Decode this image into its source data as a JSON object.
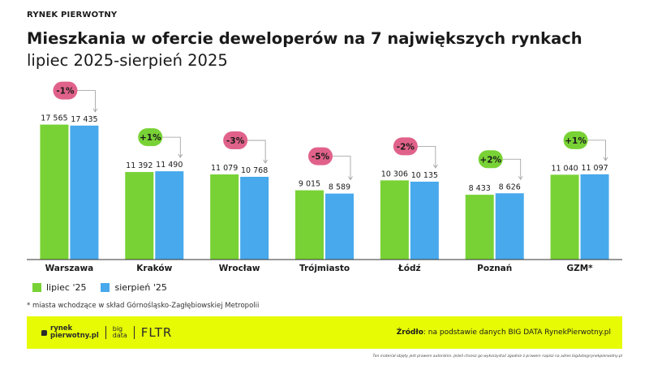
{
  "header": {
    "kicker": "RYNEK PIERWOTNY",
    "title_line1": "Mieszkania w ofercie deweloperów na 7 największych rynkach",
    "title_line2": "lipiec 2025-sierpień 2025"
  },
  "chart_data": {
    "type": "bar",
    "categories": [
      "Warszawa",
      "Kraków",
      "Wrocław",
      "Trójmiasto",
      "Łódź",
      "Poznań",
      "GZM*"
    ],
    "series": [
      {
        "name": "lipiec '25",
        "color": "#78d235",
        "values": [
          17565,
          11392,
          11079,
          9015,
          10306,
          8433,
          11040
        ],
        "labels": [
          "17 565",
          "11 392",
          "11 079",
          "9 015",
          "10 306",
          "8 433",
          "11 040"
        ]
      },
      {
        "name": "sierpień '25",
        "color": "#48a9ec",
        "values": [
          17435,
          11490,
          10768,
          8589,
          10135,
          8626,
          11097
        ],
        "labels": [
          "17 435",
          "11 490",
          "10 768",
          "8 589",
          "10 135",
          "8 626",
          "11 097"
        ]
      }
    ],
    "changes": [
      "-1%",
      "+1%",
      "-3%",
      "-5%",
      "-2%",
      "+2%",
      "+1%"
    ],
    "change_colors": {
      "negative": "#e0628b",
      "positive": "#78d235"
    },
    "ylim": [
      0,
      19000
    ],
    "grid": false,
    "legend_position": "bottom-left"
  },
  "footnote": "* miasta wchodzące w skład Górnośląsko-Zagłębiowskiej Metropolii",
  "footer": {
    "logo_rp_line1": "rynek",
    "logo_rp_line2": "pierwotny.pl",
    "logo_bd_line1": "big",
    "logo_bd_line2": "data",
    "logo_fltr": "FLTR",
    "source_label": "Źródło",
    "source_text": ": na podstawie danych BIG DATA RynekPierwotny.pl",
    "disclaimer": "Ten materiał objęty jest prawem autorskim. Jeżeli chcesz go wykorzystać zgodnie z prawem napisz na adres bigdata@rynekpierwotny.pl"
  }
}
